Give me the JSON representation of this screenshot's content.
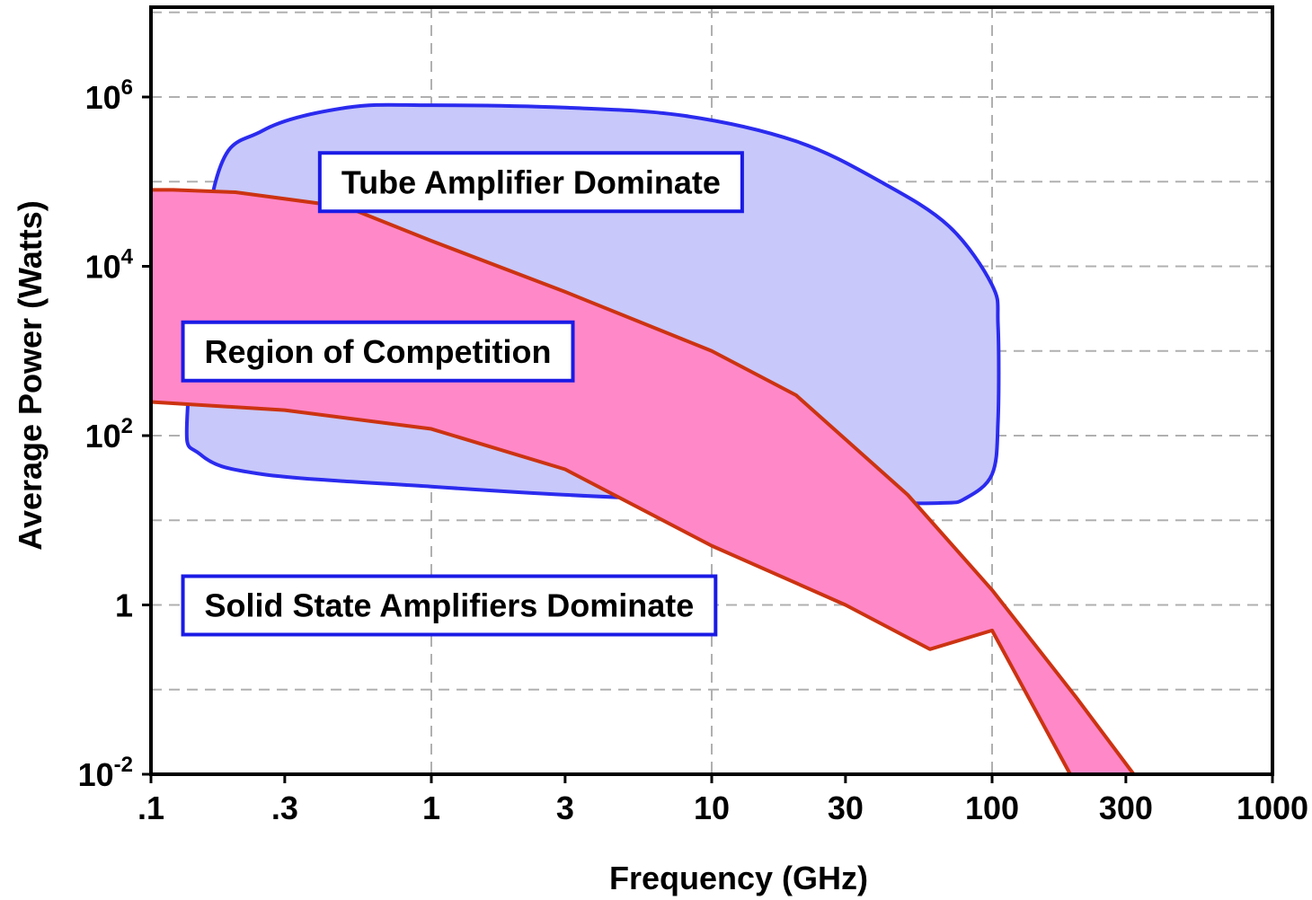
{
  "chart_data": {
    "type": "area",
    "xlabel": "Frequency (GHz)",
    "ylabel": "Average Power (Watts)",
    "x_scale": "log",
    "y_scale": "log",
    "xlim": [
      0.1,
      1000
    ],
    "ylim": [
      0.01,
      10000000000
    ],
    "ylim_note_free": true,
    "grid": true,
    "x_ticks": [
      {
        "value": 0.1,
        "label": ".1"
      },
      {
        "value": 0.3,
        "label": ".3"
      },
      {
        "value": 1,
        "label": "1"
      },
      {
        "value": 3,
        "label": "3"
      },
      {
        "value": 10,
        "label": "10"
      },
      {
        "value": 30,
        "label": "30"
      },
      {
        "value": 100,
        "label": "100"
      },
      {
        "value": 300,
        "label": "300"
      },
      {
        "value": 1000,
        "label": "1000"
      }
    ],
    "y_ticks": [
      {
        "value": 0.01,
        "base": "10",
        "exp": "-2"
      },
      {
        "value": 1,
        "base": "1",
        "exp": ""
      },
      {
        "value": 100,
        "base": "10",
        "exp": "2"
      },
      {
        "value": 10000,
        "base": "10",
        "exp": "4"
      },
      {
        "value": 1000000,
        "base": "10",
        "exp": "6"
      }
    ],
    "regions": [
      {
        "name": "Tube Amplifier Dominate",
        "fill": "#c8c8fa",
        "stroke": "#2b2bef",
        "polygon": [
          [
            0.135,
            200
          ],
          [
            0.15,
            60
          ],
          [
            0.25,
            35
          ],
          [
            1,
            25
          ],
          [
            3,
            20
          ],
          [
            10,
            17
          ],
          [
            30,
            16
          ],
          [
            65,
            16
          ],
          [
            80,
            18
          ],
          [
            100,
            35
          ],
          [
            105,
            150
          ],
          [
            105,
            2000
          ],
          [
            100,
            6000
          ],
          [
            70,
            30000
          ],
          [
            40,
            100000
          ],
          [
            20,
            300000
          ],
          [
            8,
            600000
          ],
          [
            3,
            750000
          ],
          [
            1,
            800000
          ],
          [
            0.5,
            750000
          ],
          [
            0.25,
            400000
          ],
          [
            0.17,
            100000
          ]
        ]
      },
      {
        "name": "Region of Competition",
        "fill": "#ff88c8",
        "stroke": "#cc3311",
        "polygon": [
          [
            0.1,
            80000
          ],
          [
            0.12,
            80000
          ],
          [
            0.2,
            75000
          ],
          [
            0.5,
            50000
          ],
          [
            1,
            20000
          ],
          [
            3,
            5000
          ],
          [
            10,
            1000
          ],
          [
            20,
            300
          ],
          [
            50,
            20
          ],
          [
            100,
            1.5
          ],
          [
            200,
            0.08
          ],
          [
            320,
            0.01
          ],
          [
            190,
            0.01
          ],
          [
            100,
            0.5
          ],
          [
            60,
            0.3
          ],
          [
            30,
            1
          ],
          [
            10,
            5
          ],
          [
            3,
            40
          ],
          [
            1,
            120
          ],
          [
            0.3,
            200
          ],
          [
            0.1,
            250
          ]
        ]
      }
    ],
    "annotations": [
      {
        "text": "Tube Amplifier Dominate",
        "x": 0.4,
        "y": 100000
      },
      {
        "text": "Region of Competition",
        "x": 0.13,
        "y": 1000
      },
      {
        "text": "Solid State Amplifiers Dominate",
        "x": 0.13,
        "y": 1
      }
    ]
  }
}
